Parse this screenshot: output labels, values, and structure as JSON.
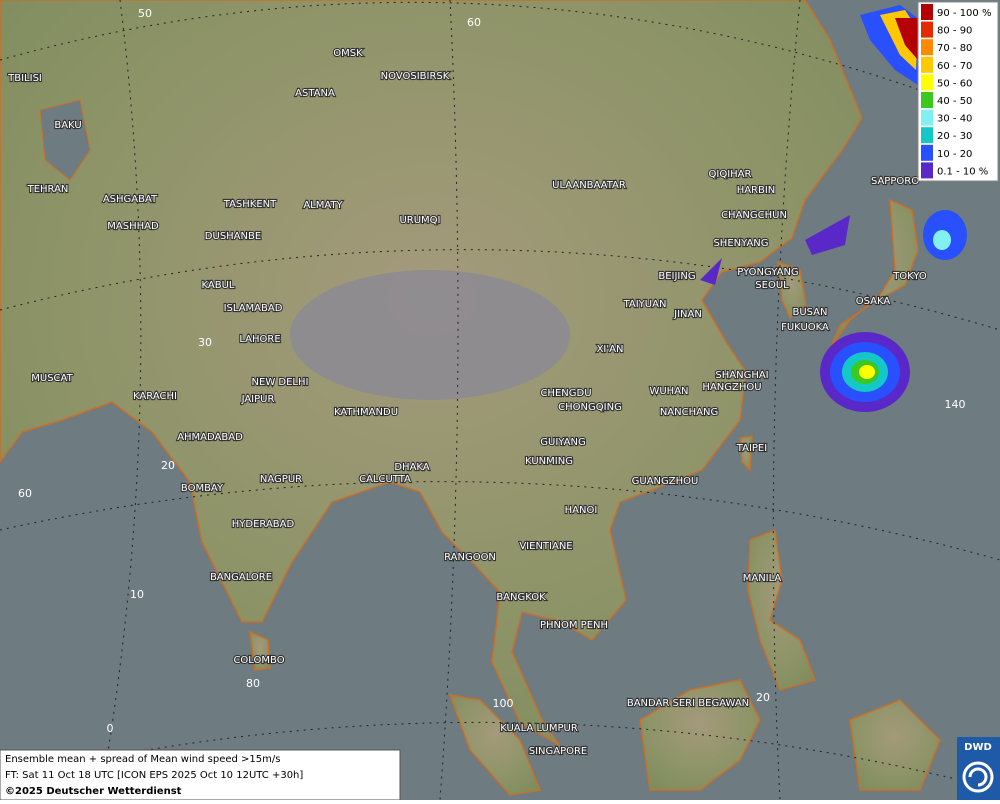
{
  "map": {
    "cities": [
      "OMSK",
      "NOVOSIBIRSK",
      "ASTANA",
      "TBILISI",
      "BAKU",
      "TEHRAN",
      "ASHGABAT",
      "MASHHAD",
      "TASHKENT",
      "ALMATY",
      "DUSHANBE",
      "URUMQI",
      "ULAANBAATAR",
      "QIQIHAR",
      "HARBIN",
      "CHANGCHUN",
      "SHENYANG",
      "BEIJING",
      "PYONGYANG",
      "SEOUL",
      "SAPPORO",
      "TOKYO",
      "OSAKA",
      "BUSAN",
      "FUKUOKA",
      "TAIYUAN",
      "JINAN",
      "XI'AN",
      "KABUL",
      "ISLAMABAD",
      "LAHORE",
      "NEW DELHI",
      "JAIPUR",
      "KARACHI",
      "MUSCAT",
      "AHMADABAD",
      "KATHMANDU",
      "CHENGDU",
      "CHONGQING",
      "WUHAN",
      "SHANGHAI",
      "HANGZHOU",
      "NANCHANG",
      "TAIPEI",
      "GUIYANG",
      "KUNMING",
      "GUANGZHOU",
      "DHAKA",
      "CALCUTTA",
      "NAGPUR",
      "BOMBAY",
      "HYDERABAD",
      "HANOI",
      "RANGOON",
      "VIENTIANE",
      "BANGALORE",
      "BANGKOK",
      "MANILA",
      "PHNOM PENH",
      "COLOMBO",
      "BANDAR SERI BEGAWAN",
      "KUALA LUMPUR",
      "SINGAPORE"
    ],
    "graticule_labels": [
      "50",
      "60",
      "30",
      "20",
      "60",
      "10",
      "80",
      "0",
      "140",
      "20",
      "100"
    ]
  },
  "legend": {
    "entries": [
      {
        "label": "90 - 100 %",
        "color": "#b40000"
      },
      {
        "label": "80 - 90",
        "color": "#e42a00"
      },
      {
        "label": "70 - 80",
        "color": "#ff8a00"
      },
      {
        "label": "60 - 70",
        "color": "#ffc800"
      },
      {
        "label": "50 - 60",
        "color": "#ffff00"
      },
      {
        "label": "40 - 50",
        "color": "#3cc81e"
      },
      {
        "label": "30 - 40",
        "color": "#82f0f0"
      },
      {
        "label": "20 - 30",
        "color": "#14c8c8"
      },
      {
        "label": "10 - 20",
        "color": "#2850ff"
      },
      {
        "label": "0.1 - 10 %",
        "color": "#5a28c8"
      }
    ]
  },
  "footer": {
    "lines": [
      "Ensemble mean + spread of Mean wind speed >15m/s",
      "FT: Sat 11 Oct 18 UTC [ICON EPS 2025 Oct 10 12UTC +30h]",
      "©2025 Deutscher Wetterdienst"
    ]
  },
  "logo": "DWD"
}
